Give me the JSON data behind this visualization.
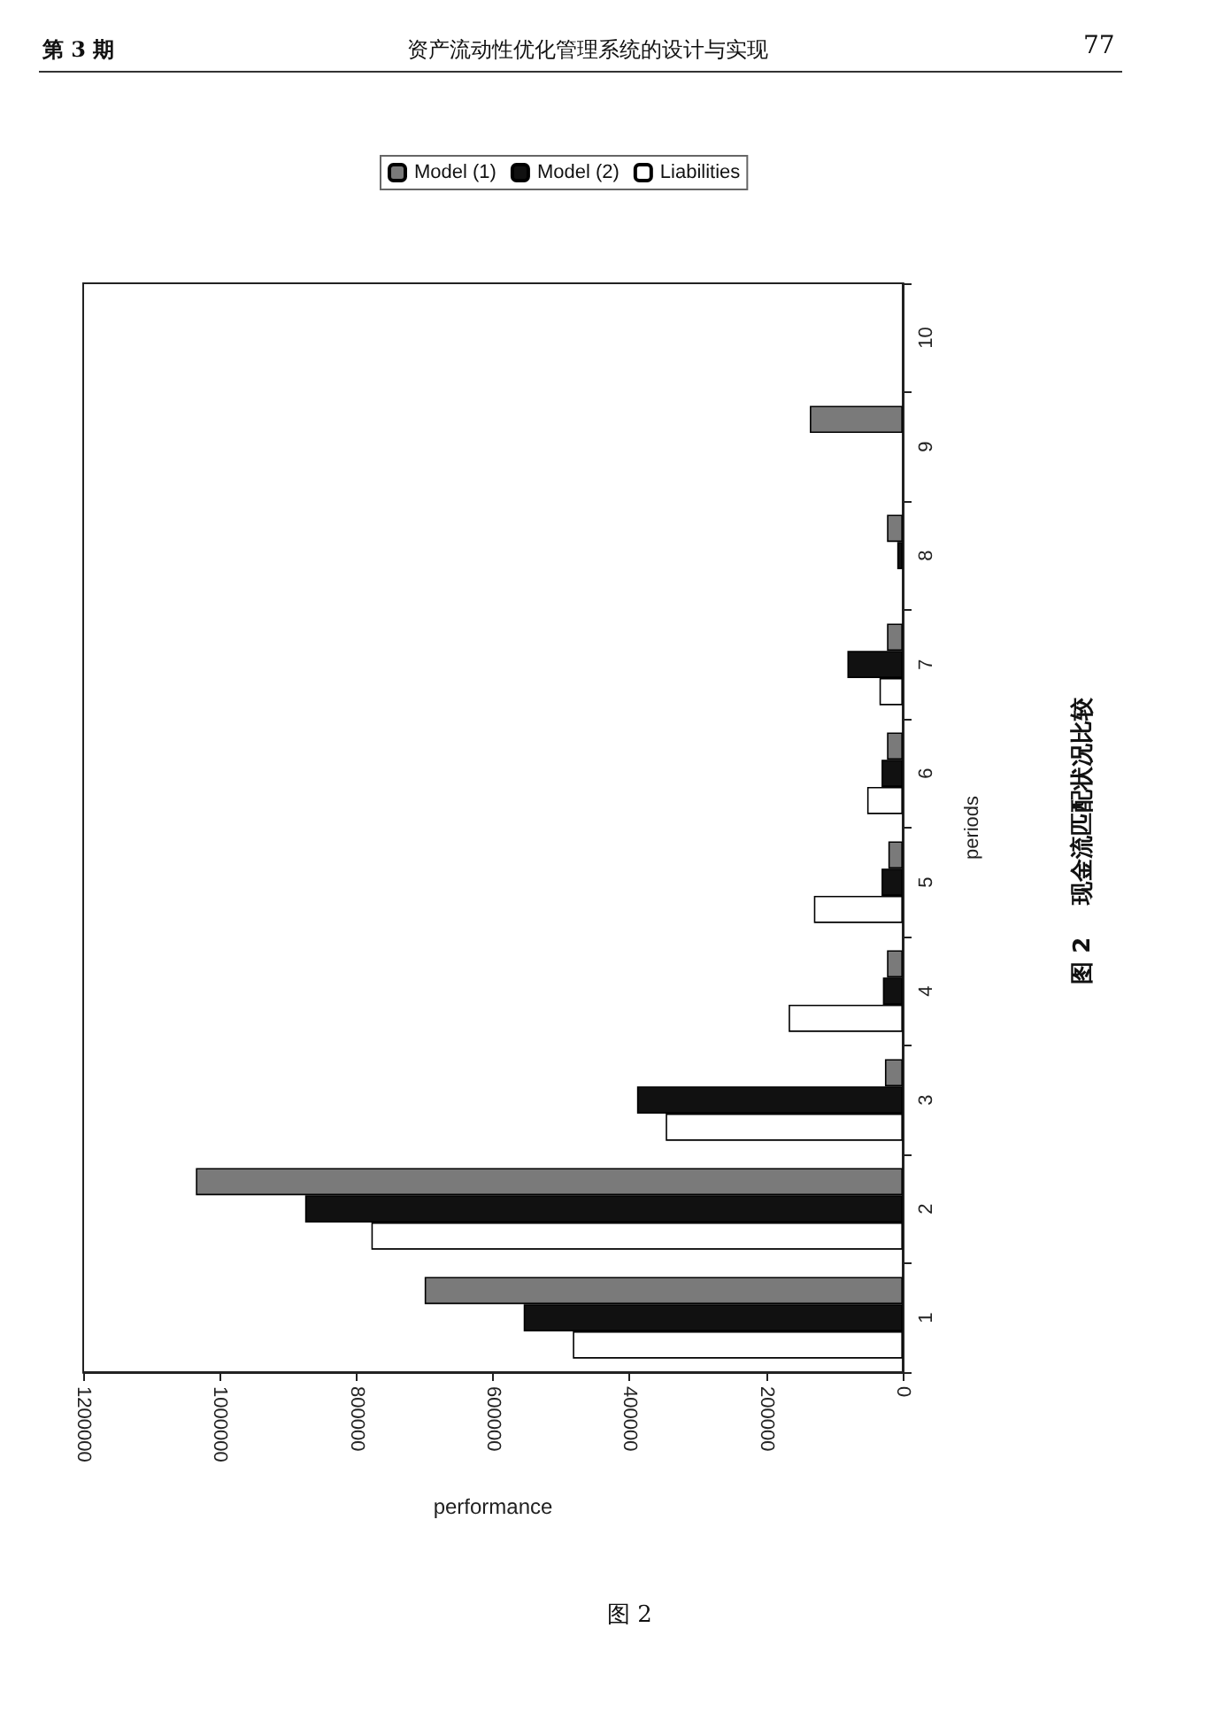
{
  "chart_data": {
    "type": "bar",
    "orientation": "horizontal",
    "title": "图 2    现金流匹配状况比较",
    "xlabel": "performance",
    "ylabel": "periods",
    "categories": [
      "10",
      "9",
      "8",
      "7",
      "6",
      "5",
      "4",
      "3",
      "2",
      "1"
    ],
    "series": [
      {
        "name": "Model (1)",
        "color": "#7a7a7a",
        "values": [
          0,
          136000,
          23000,
          23000,
          23000,
          21000,
          23000,
          26000,
          1035000,
          700000
        ]
      },
      {
        "name": "Model (2)",
        "color": "#111111",
        "values": [
          0,
          0,
          8000,
          81000,
          31000,
          31000,
          29000,
          389000,
          875000,
          555000
        ]
      },
      {
        "name": "Liabilities",
        "color": "#ffffff",
        "values": [
          0,
          0,
          null,
          34000,
          52000,
          130000,
          167000,
          347000,
          778000,
          483000
        ]
      }
    ],
    "xlim": [
      1200000,
      0
    ],
    "xticks": [
      0,
      200000,
      400000,
      600000,
      800000,
      1000000,
      1200000
    ],
    "legend": "top",
    "annotations": [
      "第 3 期",
      "资产流动性优化管理系统的设计与实现",
      "77",
      "图 2"
    ]
  }
}
